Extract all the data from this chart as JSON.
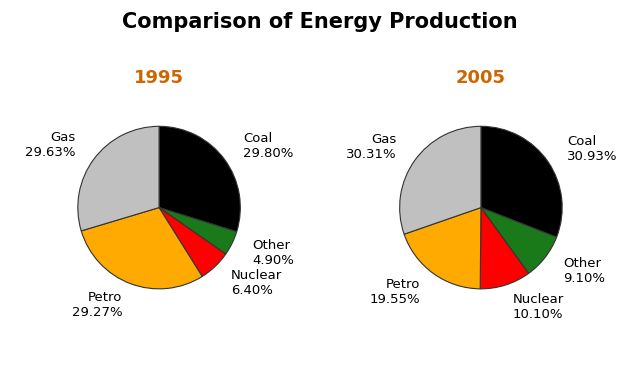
{
  "title": "Comparison of Energy Production",
  "title_fontsize": 15,
  "title_fontweight": "bold",
  "chart1_year": "1995",
  "chart2_year": "2005",
  "year_fontsize": 13,
  "year_fontweight": "bold",
  "year_color": "#cc6600",
  "labels": [
    "Coal",
    "Other",
    "Nuclear",
    "Petro",
    "Gas"
  ],
  "values_1995": [
    29.8,
    4.9,
    6.4,
    29.27,
    29.63
  ],
  "values_2005": [
    30.93,
    9.1,
    10.1,
    19.55,
    30.31
  ],
  "colors": [
    "#000000",
    "#1a7a1a",
    "#ff0000",
    "#ffaa00",
    "#c0c0c0"
  ],
  "label_fontsize": 9.5,
  "startangle": 90,
  "background_color": "#ffffff"
}
